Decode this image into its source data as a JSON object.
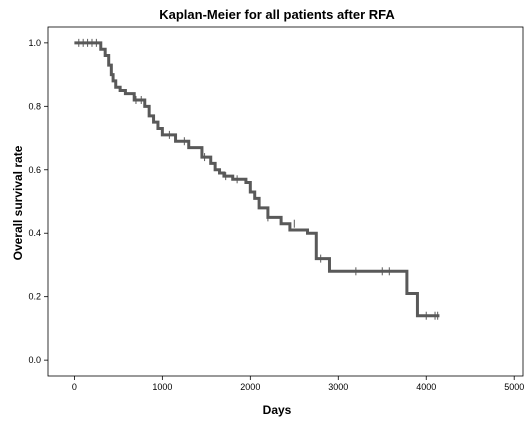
{
  "chart_data": {
    "type": "line",
    "subtype": "kaplan-meier-step",
    "title": "Kaplan-Meier for all patients after RFA",
    "xlabel": "Days",
    "ylabel": "Overall survival rate",
    "xlim": [
      -300,
      5100
    ],
    "ylim": [
      -0.05,
      1.05
    ],
    "x_ticks": [
      0,
      1000,
      2000,
      3000,
      4000,
      5000
    ],
    "x_tick_labels": [
      "0",
      "1000",
      "2000",
      "3000",
      "4000",
      "5000"
    ],
    "y_ticks": [
      0.0,
      0.2,
      0.4,
      0.6,
      0.8,
      1.0
    ],
    "y_tick_labels": [
      "0.0",
      "0.2",
      "0.4",
      "0.6",
      "0.8",
      "1.0"
    ],
    "grid": false,
    "legend": "none",
    "line_color": "#595959",
    "series": [
      {
        "x": [
          0,
          300,
          350,
          390,
          420,
          440,
          470,
          520,
          580,
          680,
          800,
          850,
          900,
          950,
          1000,
          1150,
          1300,
          1450,
          1550,
          1600,
          1650,
          1700,
          1800,
          1950,
          2000,
          2050,
          2100,
          2200,
          2350,
          2450,
          2650,
          2750,
          2900,
          3780,
          3900,
          4150
        ],
        "y": [
          1.0,
          0.98,
          0.96,
          0.93,
          0.9,
          0.88,
          0.86,
          0.85,
          0.84,
          0.82,
          0.8,
          0.77,
          0.75,
          0.73,
          0.71,
          0.69,
          0.67,
          0.64,
          0.62,
          0.6,
          0.59,
          0.58,
          0.57,
          0.56,
          0.53,
          0.51,
          0.48,
          0.45,
          0.43,
          0.41,
          0.4,
          0.32,
          0.28,
          0.21,
          0.14,
          0.14
        ]
      }
    ],
    "censored": {
      "x": [
        50,
        100,
        150,
        200,
        250,
        700,
        760,
        1080,
        1250,
        1480,
        1720,
        1850,
        2200,
        2500,
        2800,
        3200,
        3500,
        3580,
        4000,
        4100,
        4130
      ],
      "y": [
        1.0,
        1.0,
        1.0,
        1.0,
        1.0,
        0.82,
        0.82,
        0.71,
        0.69,
        0.64,
        0.58,
        0.57,
        0.45,
        0.43,
        0.32,
        0.28,
        0.28,
        0.28,
        0.14,
        0.14,
        0.14
      ]
    }
  }
}
